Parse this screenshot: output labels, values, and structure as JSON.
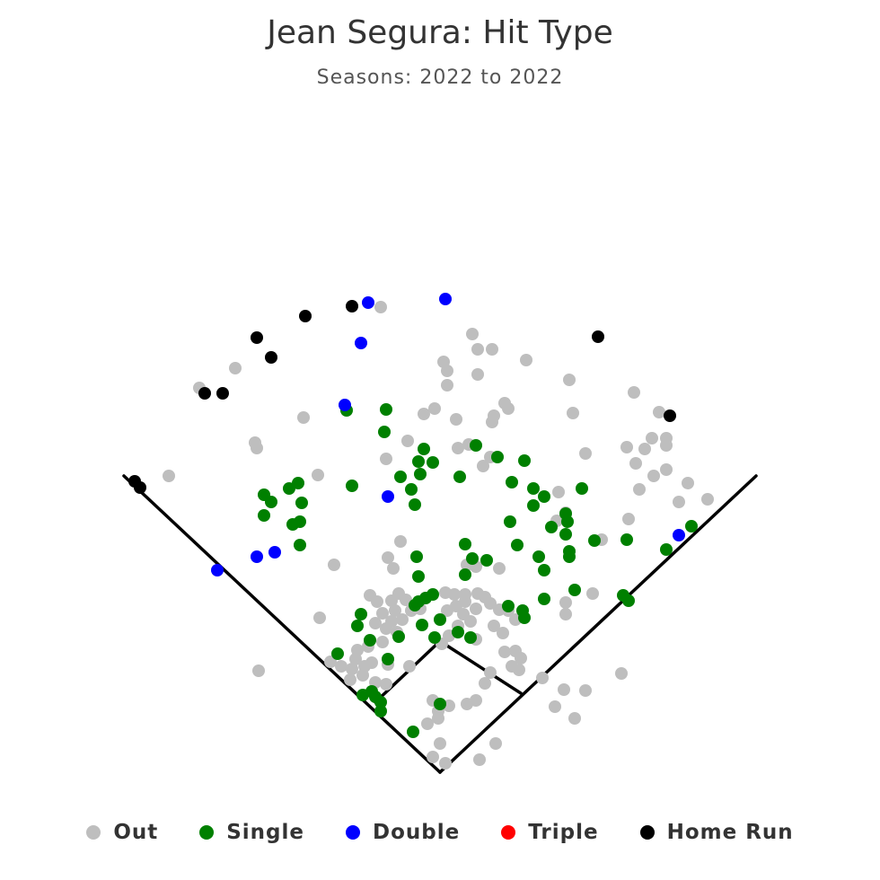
{
  "chart_data": {
    "type": "scatter",
    "title": "Jean Segura: Hit Type",
    "subtitle": "Seasons: 2022 to 2022",
    "legend_position": "bottom",
    "series": [
      {
        "name": "Out",
        "color": "#bebebe",
        "points": [
          [
            424,
            342
          ],
          [
            526,
            372
          ],
          [
            532,
            389
          ],
          [
            548,
            389
          ],
          [
            586,
            401
          ],
          [
            262,
            410
          ],
          [
            494,
            403
          ],
          [
            498,
            413
          ],
          [
            532,
            417
          ],
          [
            498,
            429
          ],
          [
            634,
            423
          ],
          [
            222,
            432
          ],
          [
            706,
            437
          ],
          [
            562,
            449
          ],
          [
            566,
            455
          ],
          [
            484,
            455
          ],
          [
            472,
            461
          ],
          [
            550,
            463
          ],
          [
            548,
            470
          ],
          [
            508,
            467
          ],
          [
            638,
            460
          ],
          [
            338,
            465
          ],
          [
            734,
            459
          ],
          [
            284,
            493
          ],
          [
            286,
            499
          ],
          [
            454,
            491
          ],
          [
            522,
            495
          ],
          [
            510,
            499
          ],
          [
            698,
            498
          ],
          [
            718,
            500
          ],
          [
            726,
            488
          ],
          [
            742,
            488
          ],
          [
            742,
            496
          ],
          [
            652,
            505
          ],
          [
            708,
            516
          ],
          [
            430,
            511
          ],
          [
            538,
            519
          ],
          [
            546,
            509
          ],
          [
            742,
            523
          ],
          [
            728,
            530
          ],
          [
            712,
            545
          ],
          [
            766,
            538
          ],
          [
            188,
            530
          ],
          [
            354,
            529
          ],
          [
            622,
            548
          ],
          [
            756,
            559
          ],
          [
            788,
            556
          ],
          [
            630,
            571
          ],
          [
            620,
            580
          ],
          [
            700,
            578
          ],
          [
            670,
            601
          ],
          [
            446,
            603
          ],
          [
            432,
            621
          ],
          [
            438,
            633
          ],
          [
            372,
            629
          ],
          [
            530,
            631
          ],
          [
            520,
            629
          ],
          [
            556,
            633
          ],
          [
            356,
            688
          ],
          [
            660,
            661
          ],
          [
            630,
            671
          ],
          [
            630,
            684
          ],
          [
            288,
            747
          ],
          [
            692,
            750
          ],
          [
            412,
            663
          ],
          [
            420,
            670
          ],
          [
            436,
            669
          ],
          [
            444,
            661
          ],
          [
            452,
            668
          ],
          [
            440,
            680
          ],
          [
            426,
            683
          ],
          [
            418,
            694
          ],
          [
            436,
            692
          ],
          [
            430,
            700
          ],
          [
            442,
            704
          ],
          [
            426,
            715
          ],
          [
            410,
            720
          ],
          [
            398,
            724
          ],
          [
            396,
            734
          ],
          [
            392,
            745
          ],
          [
            406,
            742
          ],
          [
            414,
            738
          ],
          [
            404,
            752
          ],
          [
            390,
            757
          ],
          [
            418,
            760
          ],
          [
            430,
            762
          ],
          [
            432,
            740
          ],
          [
            456,
            742
          ],
          [
            380,
            742
          ],
          [
            368,
            737
          ],
          [
            496,
            660
          ],
          [
            506,
            662
          ],
          [
            518,
            662
          ],
          [
            532,
            661
          ],
          [
            540,
            665
          ],
          [
            546,
            672
          ],
          [
            530,
            678
          ],
          [
            518,
            670
          ],
          [
            508,
            675
          ],
          [
            498,
            680
          ],
          [
            516,
            684
          ],
          [
            524,
            692
          ],
          [
            510,
            697
          ],
          [
            500,
            708
          ],
          [
            492,
            717
          ],
          [
            530,
            712
          ],
          [
            550,
            697
          ],
          [
            556,
            679
          ],
          [
            566,
            680
          ],
          [
            574,
            690
          ],
          [
            560,
            705
          ],
          [
            562,
            726
          ],
          [
            574,
            725
          ],
          [
            580,
            733
          ],
          [
            570,
            742
          ],
          [
            578,
            746
          ],
          [
            546,
            749
          ],
          [
            540,
            761
          ],
          [
            604,
            755
          ],
          [
            628,
            768
          ],
          [
            652,
            769
          ],
          [
            618,
            787
          ],
          [
            640,
            800
          ],
          [
            530,
            780
          ],
          [
            520,
            784
          ],
          [
            500,
            786
          ],
          [
            482,
            780
          ],
          [
            488,
            792
          ],
          [
            476,
            806
          ],
          [
            488,
            800
          ],
          [
            490,
            828
          ],
          [
            482,
            843
          ],
          [
            496,
            850
          ],
          [
            534,
            846
          ],
          [
            552,
            828
          ],
          [
            474,
            666
          ],
          [
            468,
            678
          ],
          [
            458,
            680
          ],
          [
            448,
            690
          ]
        ]
      },
      {
        "name": "Single",
        "color": "#008000",
        "points": [
          [
            386,
            457
          ],
          [
            430,
            456
          ],
          [
            428,
            481
          ],
          [
            472,
            500
          ],
          [
            466,
            514
          ],
          [
            482,
            515
          ],
          [
            468,
            528
          ],
          [
            446,
            531
          ],
          [
            458,
            545
          ],
          [
            462,
            562
          ],
          [
            392,
            541
          ],
          [
            332,
            538
          ],
          [
            322,
            544
          ],
          [
            294,
            551
          ],
          [
            302,
            559
          ],
          [
            336,
            560
          ],
          [
            294,
            574
          ],
          [
            334,
            581
          ],
          [
            326,
            584
          ],
          [
            334,
            607
          ],
          [
            530,
            496
          ],
          [
            554,
            509
          ],
          [
            584,
            513
          ],
          [
            512,
            531
          ],
          [
            570,
            537
          ],
          [
            594,
            544
          ],
          [
            606,
            553
          ],
          [
            594,
            563
          ],
          [
            648,
            544
          ],
          [
            568,
            581
          ],
          [
            614,
            587
          ],
          [
            630,
            572
          ],
          [
            632,
            581
          ],
          [
            630,
            595
          ],
          [
            576,
            607
          ],
          [
            518,
            606
          ],
          [
            662,
            602
          ],
          [
            698,
            601
          ],
          [
            770,
            586
          ],
          [
            742,
            612
          ],
          [
            600,
            620
          ],
          [
            634,
            614
          ],
          [
            634,
            620
          ],
          [
            526,
            622
          ],
          [
            542,
            624
          ],
          [
            464,
            620
          ],
          [
            466,
            642
          ],
          [
            518,
            640
          ],
          [
            606,
            635
          ],
          [
            640,
            657
          ],
          [
            694,
            663
          ],
          [
            700,
            669
          ],
          [
            606,
            667
          ],
          [
            566,
            675
          ],
          [
            582,
            680
          ],
          [
            584,
            688
          ],
          [
            482,
            662
          ],
          [
            474,
            666
          ],
          [
            462,
            674
          ],
          [
            466,
            670
          ],
          [
            490,
            690
          ],
          [
            470,
            696
          ],
          [
            484,
            710
          ],
          [
            510,
            704
          ],
          [
            524,
            710
          ],
          [
            402,
            684
          ],
          [
            398,
            697
          ],
          [
            444,
            709
          ],
          [
            412,
            713
          ],
          [
            376,
            728
          ],
          [
            432,
            734
          ],
          [
            404,
            774
          ],
          [
            418,
            776
          ],
          [
            414,
            770
          ],
          [
            424,
            782
          ],
          [
            424,
            792
          ],
          [
            490,
            784
          ],
          [
            460,
            815
          ]
        ]
      },
      {
        "name": "Double",
        "color": "#0000ff",
        "points": [
          [
            410,
            337
          ],
          [
            496,
            333
          ],
          [
            402,
            382
          ],
          [
            384,
            451
          ],
          [
            432,
            553
          ],
          [
            242,
            635
          ],
          [
            286,
            620
          ],
          [
            306,
            615
          ],
          [
            756,
            596
          ]
        ]
      },
      {
        "name": "Triple",
        "color": "#ff0000",
        "points": []
      },
      {
        "name": "Home Run",
        "color": "#000000",
        "points": [
          [
            340,
            352
          ],
          [
            392,
            341
          ],
          [
            286,
            376
          ],
          [
            302,
            398
          ],
          [
            228,
            438
          ],
          [
            248,
            438
          ],
          [
            666,
            375
          ],
          [
            746,
            463
          ],
          [
            150,
            536
          ],
          [
            156,
            543
          ]
        ]
      }
    ]
  }
}
